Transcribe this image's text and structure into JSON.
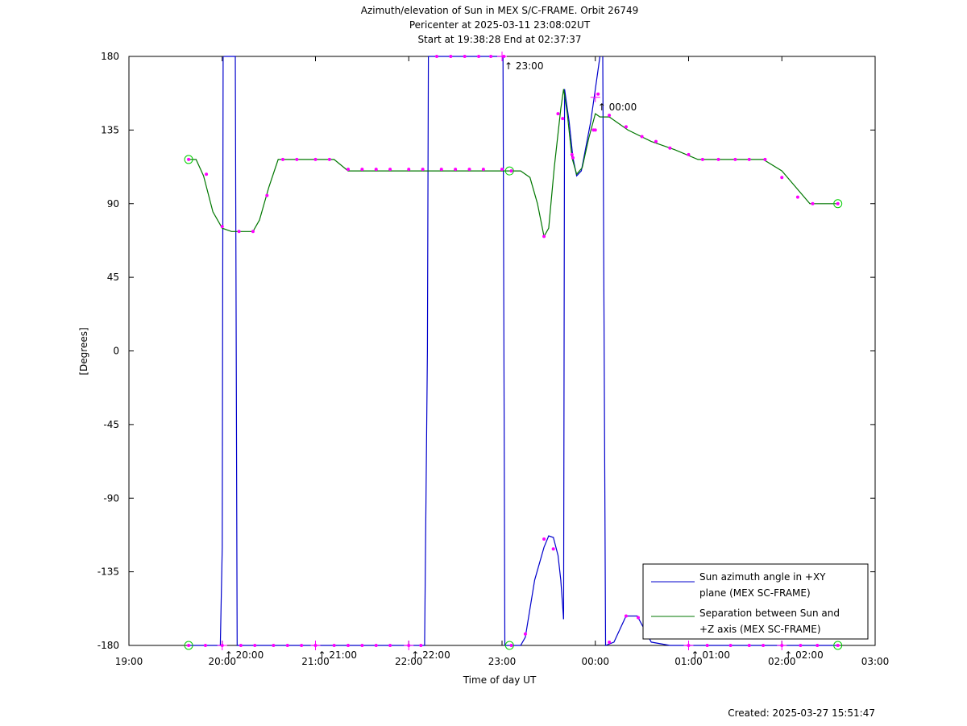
{
  "chart_data": {
    "type": "line",
    "title": "Azimuth/elevation of Sun in MEX S/C-FRAME.  Orbit 26749",
    "subtitle_1": "Pericenter at 2025-03-11 23:08:02UT",
    "subtitle_2": "Start at 19:38:28 End at 02:37:37",
    "xlabel": "Time of day UT",
    "ylabel": "[Degrees]",
    "created": "Created: 2025-03-27 15:51:47",
    "xlim_hours": [
      19,
      27
    ],
    "ylim": [
      -180,
      180
    ],
    "x_tick_labels": [
      "19:00",
      "20:00",
      "21:00",
      "22:00",
      "23:00",
      "00:00",
      "01:00",
      "02:00",
      "03:00"
    ],
    "y_ticks": [
      180,
      135,
      90,
      45,
      0,
      -45,
      -90,
      -135,
      -180
    ],
    "legend_position": "bottom-right",
    "legend": [
      {
        "line1": "Sun azimuth angle in +XY",
        "line2": "plane (MEX SC-FRAME)",
        "color": "#0000cc"
      },
      {
        "line1": "Separation between Sun and",
        "line2": "+Z axis (MEX SC-FRAME)",
        "color": "#007700"
      }
    ],
    "hour_markers": [
      {
        "label": "20:00",
        "t": 20.0,
        "y": -180
      },
      {
        "label": "21:00",
        "t": 21.0,
        "y": -180
      },
      {
        "label": "22:00",
        "t": 22.0,
        "y": -180
      },
      {
        "label": "23:00",
        "t": 23.0,
        "y": 180
      },
      {
        "label": "00:00",
        "t": 24.0,
        "y": 155
      },
      {
        "label": "01:00",
        "t": 25.0,
        "y": -180
      },
      {
        "label": "02:00",
        "t": 26.0,
        "y": -180
      }
    ],
    "series": [
      {
        "key": "azimuth",
        "color": "#0000cc",
        "segments": [
          [
            [
              19.64,
              -180
            ],
            [
              19.9,
              -180
            ],
            [
              19.98,
              -180
            ],
            [
              20.0,
              -120
            ],
            [
              20.01,
              180
            ]
          ],
          [
            [
              20.02,
              180
            ],
            [
              20.12,
              180
            ],
            [
              20.14,
              180
            ],
            [
              20.16,
              -180
            ],
            [
              20.5,
              -180
            ],
            [
              21.5,
              -180
            ],
            [
              22.1,
              -180
            ],
            [
              22.17,
              -180
            ],
            [
              22.2,
              0
            ],
            [
              22.21,
              180
            ]
          ],
          [
            [
              22.21,
              180
            ],
            [
              23.0,
              180
            ],
            [
              23.01,
              180
            ],
            [
              23.03,
              -180
            ]
          ],
          [
            [
              23.03,
              -180
            ],
            [
              23.2,
              -180
            ],
            [
              23.25,
              -175
            ],
            [
              23.35,
              -140
            ],
            [
              23.45,
              -120
            ],
            [
              23.5,
              -113
            ],
            [
              23.55,
              -114
            ],
            [
              23.6,
              -125
            ],
            [
              23.63,
              -140
            ],
            [
              23.66,
              -164
            ]
          ],
          [
            [
              23.66,
              -164
            ],
            [
              23.67,
              160
            ],
            [
              23.72,
              140
            ],
            [
              23.76,
              118
            ],
            [
              23.8,
              107
            ],
            [
              23.85,
              110
            ],
            [
              23.9,
              125
            ],
            [
              23.95,
              140
            ],
            [
              24.0,
              160
            ],
            [
              24.05,
              180
            ]
          ],
          [
            [
              24.08,
              180
            ],
            [
              24.11,
              -180
            ],
            [
              24.2,
              -178
            ],
            [
              24.33,
              -162
            ],
            [
              24.45,
              -162
            ],
            [
              24.6,
              -178
            ],
            [
              24.8,
              -180
            ],
            [
              25.5,
              -180
            ],
            [
              26.6,
              -180
            ]
          ]
        ]
      },
      {
        "key": "separation",
        "color": "#007700",
        "segments": [
          [
            [
              19.64,
              117
            ],
            [
              19.72,
              117
            ],
            [
              19.8,
              107
            ],
            [
              19.9,
              85
            ],
            [
              20.0,
              75
            ],
            [
              20.1,
              73
            ],
            [
              20.33,
              73
            ],
            [
              20.4,
              80
            ],
            [
              20.5,
              100
            ],
            [
              20.6,
              117
            ],
            [
              21.0,
              117
            ],
            [
              21.2,
              117
            ],
            [
              21.35,
              110
            ],
            [
              21.6,
              110
            ],
            [
              22.0,
              110
            ],
            [
              22.5,
              110
            ],
            [
              23.0,
              110
            ],
            [
              23.2,
              110
            ],
            [
              23.3,
              106
            ],
            [
              23.38,
              90
            ],
            [
              23.45,
              70
            ],
            [
              23.5,
              75
            ],
            [
              23.56,
              112
            ],
            [
              23.63,
              148
            ],
            [
              23.66,
              160
            ],
            [
              23.7,
              145
            ],
            [
              23.75,
              118
            ],
            [
              23.8,
              108
            ],
            [
              23.86,
              112
            ],
            [
              23.93,
              130
            ],
            [
              24.0,
              145
            ],
            [
              24.05,
              143
            ],
            [
              24.15,
              143
            ],
            [
              24.35,
              135
            ],
            [
              24.6,
              128
            ],
            [
              24.85,
              123
            ],
            [
              25.1,
              117
            ],
            [
              25.3,
              117
            ],
            [
              25.8,
              117
            ],
            [
              26.0,
              110
            ],
            [
              26.15,
              100
            ],
            [
              26.3,
              90
            ],
            [
              26.6,
              90
            ]
          ]
        ]
      }
    ],
    "sample_markers": {
      "azimuth": [
        [
          19.64,
          -180
        ],
        [
          19.82,
          -180
        ],
        [
          20.0,
          -180
        ],
        [
          20.2,
          -180
        ],
        [
          20.35,
          -180
        ],
        [
          20.55,
          -180
        ],
        [
          20.7,
          -180
        ],
        [
          20.85,
          -180
        ],
        [
          21.0,
          -180
        ],
        [
          21.2,
          -180
        ],
        [
          21.35,
          -180
        ],
        [
          21.5,
          -180
        ],
        [
          21.65,
          -180
        ],
        [
          21.8,
          -180
        ],
        [
          22.0,
          -180
        ],
        [
          22.13,
          -180
        ],
        [
          22.3,
          180
        ],
        [
          22.45,
          180
        ],
        [
          22.6,
          180
        ],
        [
          22.75,
          180
        ],
        [
          22.88,
          180
        ],
        [
          23.02,
          180
        ],
        [
          23.1,
          -180
        ],
        [
          23.25,
          -173
        ],
        [
          23.45,
          -115
        ],
        [
          23.55,
          -121
        ],
        [
          23.65,
          142
        ],
        [
          23.76,
          118
        ],
        [
          23.98,
          135
        ],
        [
          24.03,
          157
        ],
        [
          24.15,
          -178
        ],
        [
          24.33,
          -162
        ],
        [
          24.46,
          -163
        ],
        [
          25.0,
          -180
        ],
        [
          25.2,
          -180
        ],
        [
          25.45,
          -180
        ],
        [
          25.65,
          -180
        ],
        [
          25.8,
          -180
        ],
        [
          26.0,
          -180
        ],
        [
          26.2,
          -180
        ],
        [
          26.38,
          -180
        ],
        [
          26.6,
          -180
        ]
      ],
      "separation": [
        [
          19.64,
          117
        ],
        [
          19.83,
          108
        ],
        [
          20.0,
          76
        ],
        [
          20.18,
          73
        ],
        [
          20.33,
          73
        ],
        [
          20.48,
          95
        ],
        [
          20.65,
          117
        ],
        [
          20.8,
          117
        ],
        [
          21.0,
          117
        ],
        [
          21.15,
          117
        ],
        [
          21.35,
          111
        ],
        [
          21.5,
          111
        ],
        [
          21.65,
          111
        ],
        [
          21.8,
          111
        ],
        [
          22.0,
          111
        ],
        [
          22.15,
          111
        ],
        [
          22.35,
          111
        ],
        [
          22.5,
          111
        ],
        [
          22.65,
          111
        ],
        [
          22.8,
          111
        ],
        [
          23.0,
          111
        ],
        [
          23.1,
          110
        ],
        [
          23.45,
          70
        ],
        [
          23.6,
          145
        ],
        [
          23.75,
          120
        ],
        [
          24.0,
          135
        ],
        [
          24.15,
          144
        ],
        [
          24.33,
          137
        ],
        [
          24.5,
          131
        ],
        [
          24.65,
          128
        ],
        [
          24.8,
          124
        ],
        [
          25.0,
          120
        ],
        [
          25.15,
          117
        ],
        [
          25.32,
          117
        ],
        [
          25.5,
          117
        ],
        [
          25.65,
          117
        ],
        [
          25.82,
          117
        ],
        [
          26.0,
          106
        ],
        [
          26.17,
          94
        ],
        [
          26.33,
          90
        ],
        [
          26.6,
          90
        ]
      ]
    },
    "endpoint_circles": [
      [
        19.64,
        117
      ],
      [
        19.64,
        -180
      ],
      [
        23.08,
        110
      ],
      [
        23.08,
        -180
      ],
      [
        26.6,
        90
      ],
      [
        26.6,
        -180
      ]
    ]
  }
}
